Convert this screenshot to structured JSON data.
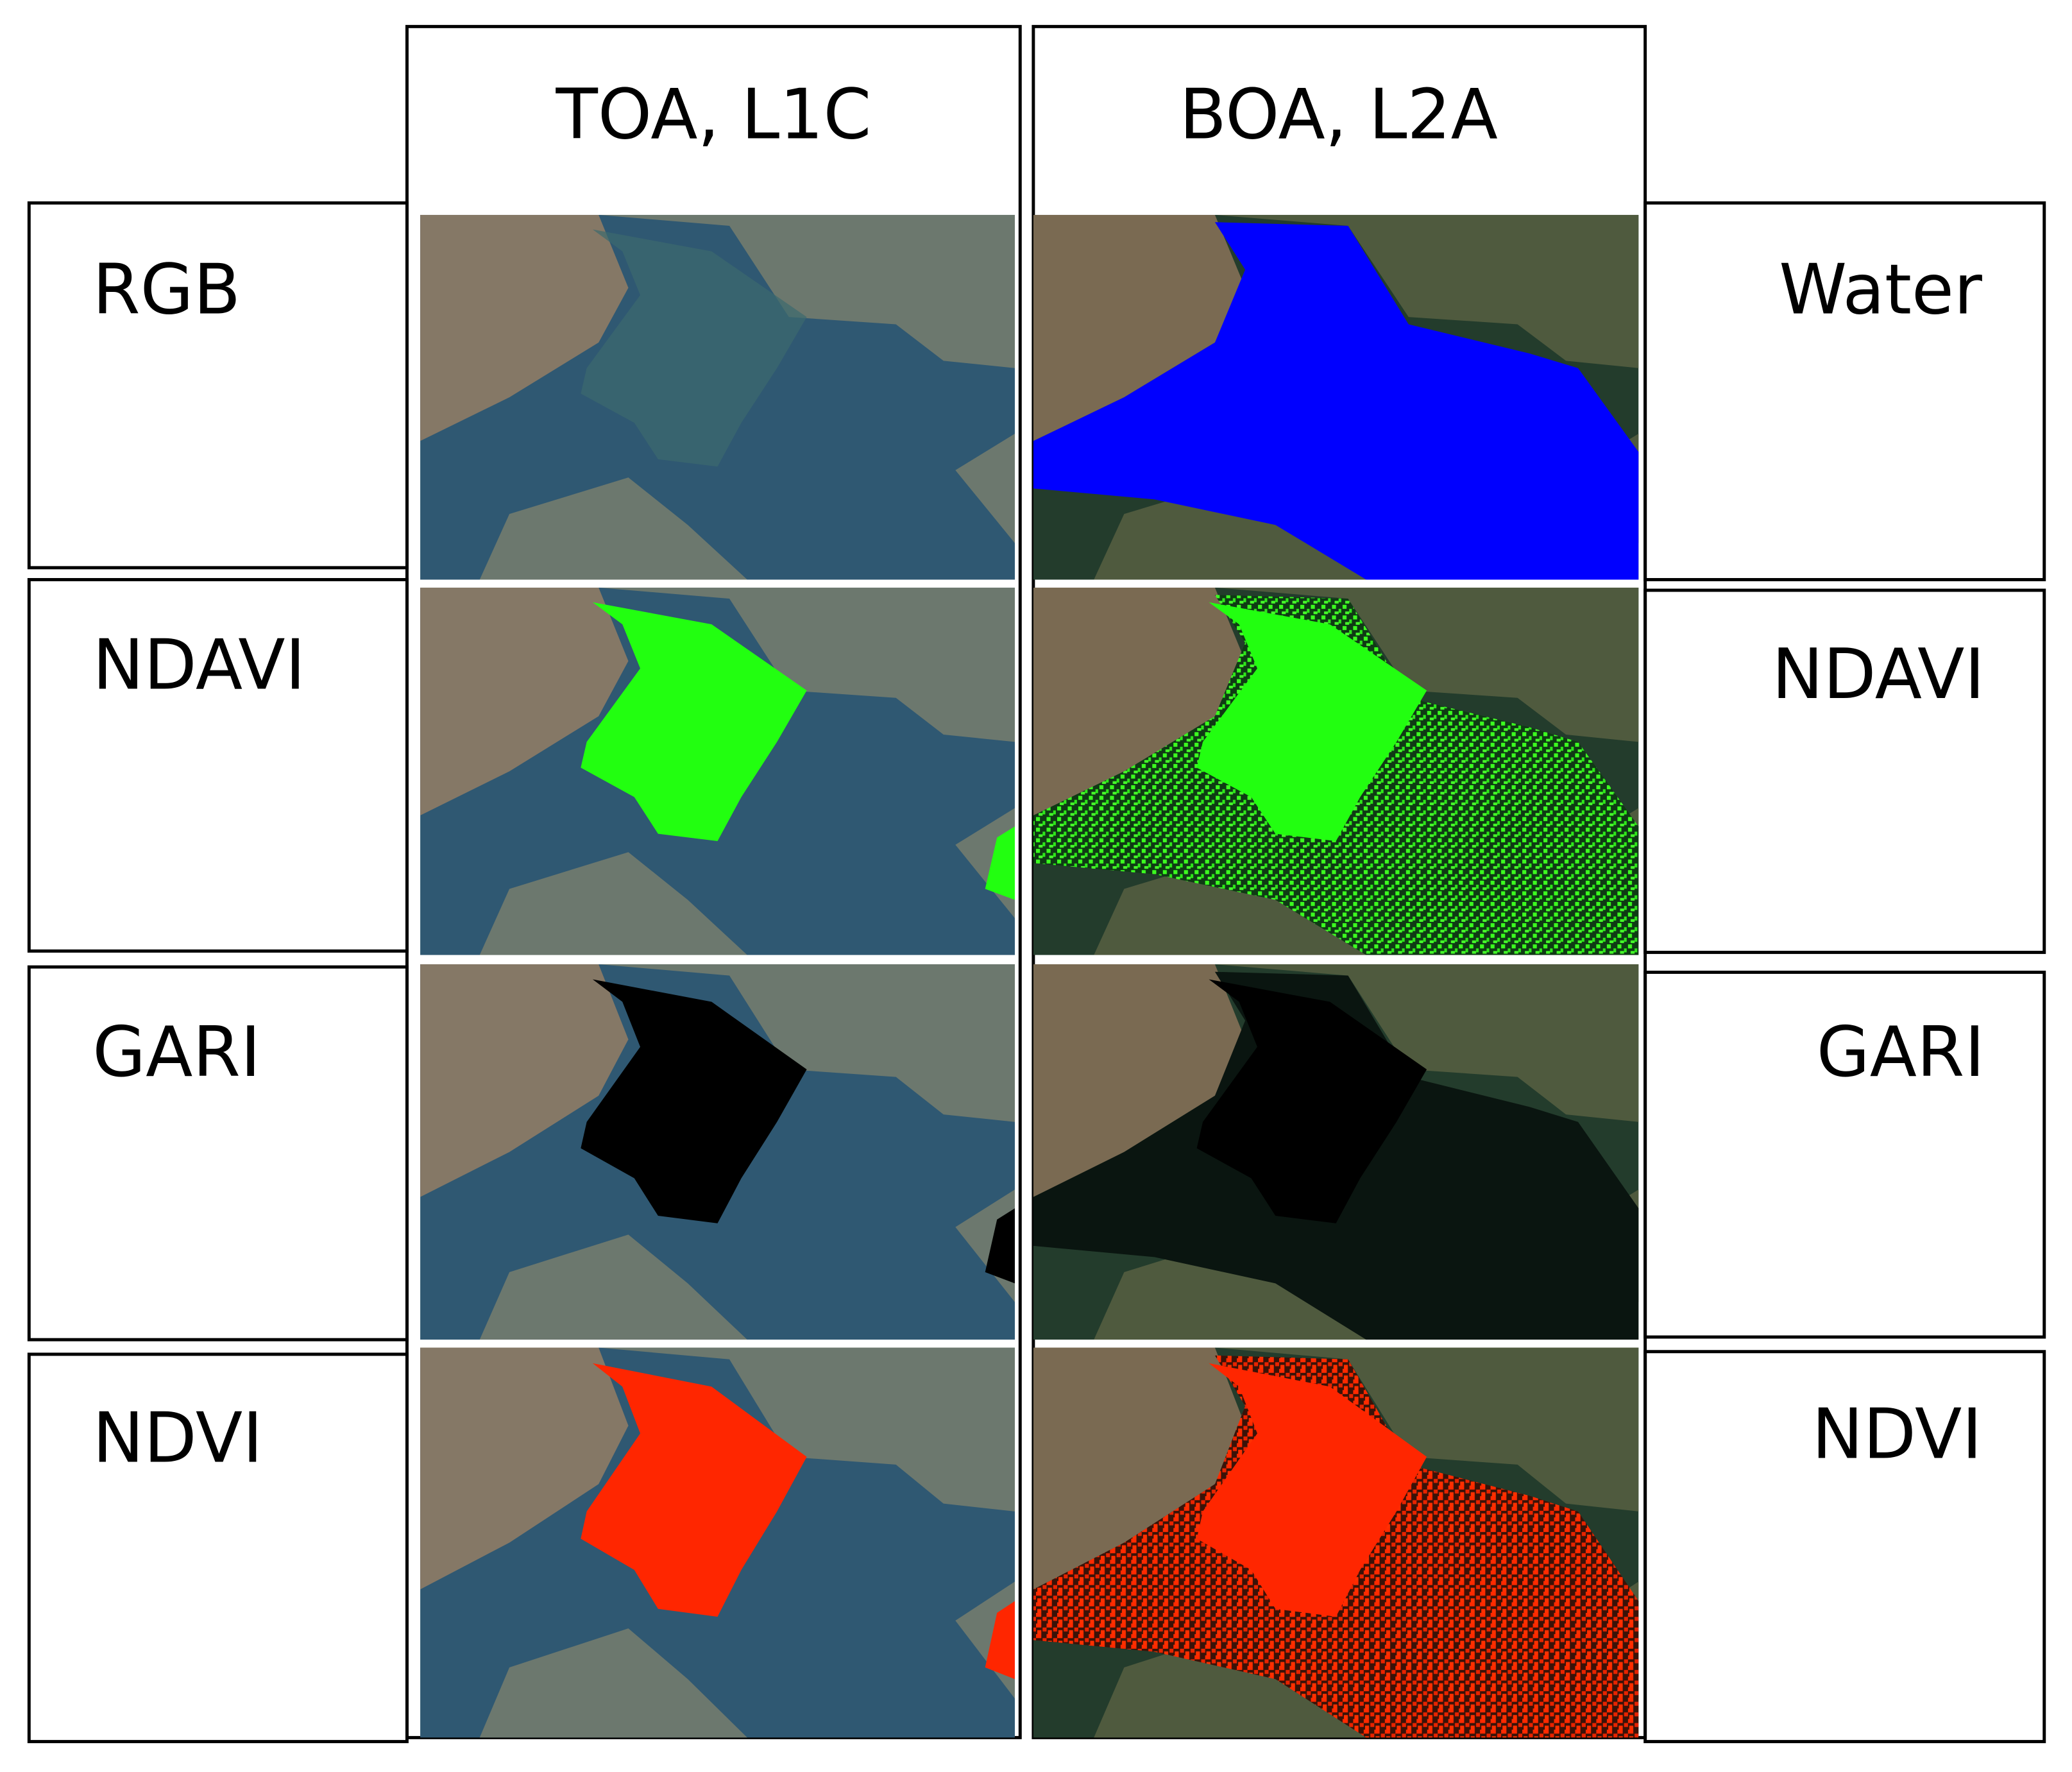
{
  "columns": [
    "TOA, L1C",
    "BOA, L2A"
  ],
  "left_labels": [
    "RGB",
    "NDAVI",
    "GARI",
    "NDVI"
  ],
  "right_labels": [
    "Water",
    "NDAVI",
    "GARI",
    "NDVI"
  ]
}
